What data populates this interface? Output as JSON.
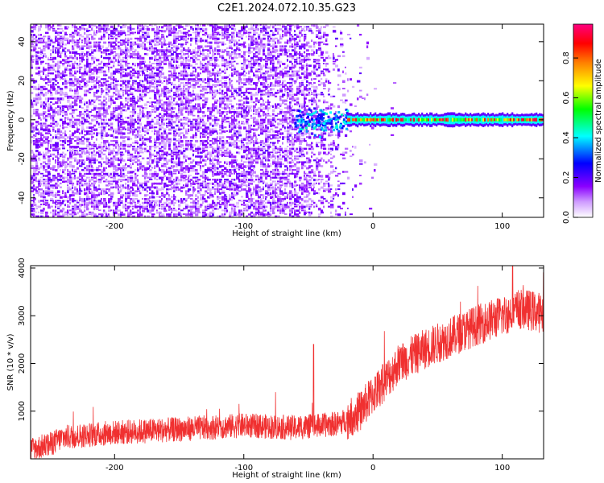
{
  "figure": {
    "title": "C2E1.2024.072.10.35.G23"
  },
  "chart_data": [
    {
      "type": "heatmap",
      "xlabel": "Height of straight line (km)",
      "ylabel": "Frequency (Hz)",
      "xlim": [
        -265,
        132
      ],
      "ylim": [
        -50,
        49
      ],
      "xticks": [
        -200,
        -100,
        0,
        100
      ],
      "yticks": [
        -40,
        -20,
        0,
        20,
        40
      ],
      "colorbar": {
        "label": "Normalized spectral amplitude",
        "range": [
          0,
          0.97
        ],
        "ticks": [
          "0.0",
          "0.2",
          "0.4",
          "0.6",
          "0.8"
        ],
        "colormap": [
          "#ffffff",
          "#8a00ff",
          "#0000ff",
          "#00ffff",
          "#00ff00",
          "#ffff00",
          "#ff8000",
          "#ff0000",
          "#ff0080"
        ]
      },
      "features": {
        "noise_region": {
          "x": [
            -265,
            -20
          ],
          "freq": [
            -50,
            49
          ],
          "amplitude_range": [
            0.05,
            0.2
          ]
        },
        "signal_band": {
          "x": [
            -20,
            132
          ],
          "freq_center": 0,
          "freq_halfwidth": 3,
          "amplitude_range": [
            0.4,
            0.97
          ]
        }
      }
    },
    {
      "type": "line",
      "xlabel": "Height of straight line (km)",
      "ylabel": "SNR (10 * v/v)",
      "xlim": [
        -265,
        132
      ],
      "ylim": [
        0,
        4050
      ],
      "xticks": [
        -200,
        -100,
        0,
        100
      ],
      "yticks": [
        1000,
        2000,
        3000,
        4000
      ],
      "color": "#f03030",
      "trend": {
        "x": [
          -265,
          -250,
          -240,
          -200,
          -150,
          -100,
          -60,
          -40,
          -25,
          -10,
          0,
          10,
          20,
          40,
          60,
          80,
          100,
          115,
          132
        ],
        "y": [
          200,
          300,
          450,
          550,
          620,
          700,
          650,
          700,
          750,
          1000,
          1350,
          1650,
          2000,
          2300,
          2550,
          2800,
          3000,
          3150,
          3050
        ]
      },
      "spikes": [
        {
          "x": -46,
          "y": 2400
        },
        {
          "x": 108,
          "y": 4050
        }
      ]
    }
  ]
}
